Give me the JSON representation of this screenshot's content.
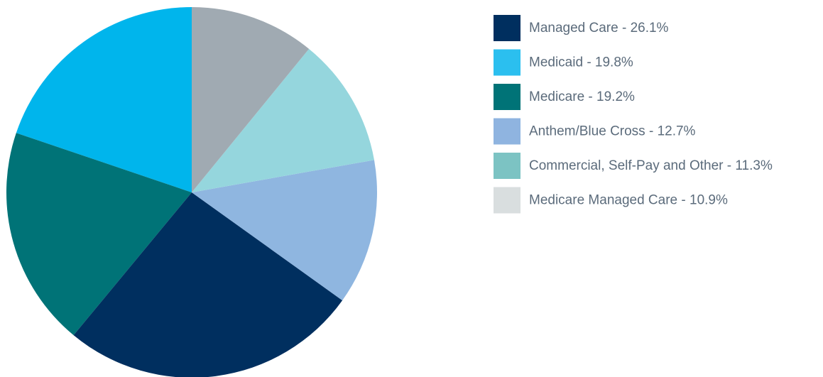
{
  "chart_data": {
    "type": "pie",
    "categories": [
      "Managed Care - 26.1%",
      "Medicaid - 19.8%",
      "Medicare - 19.2%",
      "Anthem/Blue Cross - 12.7%",
      "Commercial, Self-Pay and Other - 11.3%",
      "Medicare Managed Care - 10.9%"
    ],
    "values": [
      26.1,
      19.8,
      19.2,
      12.7,
      11.3,
      10.9
    ],
    "colors": [
      "#002f5f",
      "#00b5ec",
      "#007377",
      "#8fb6e0",
      "#95d6dd",
      "#a0aab2"
    ],
    "legend_colors": [
      "#002f5f",
      "#2bbfef",
      "#007377",
      "#8fb4e0",
      "#7cc3c3",
      "#d9dedf"
    ],
    "legend": "right"
  }
}
